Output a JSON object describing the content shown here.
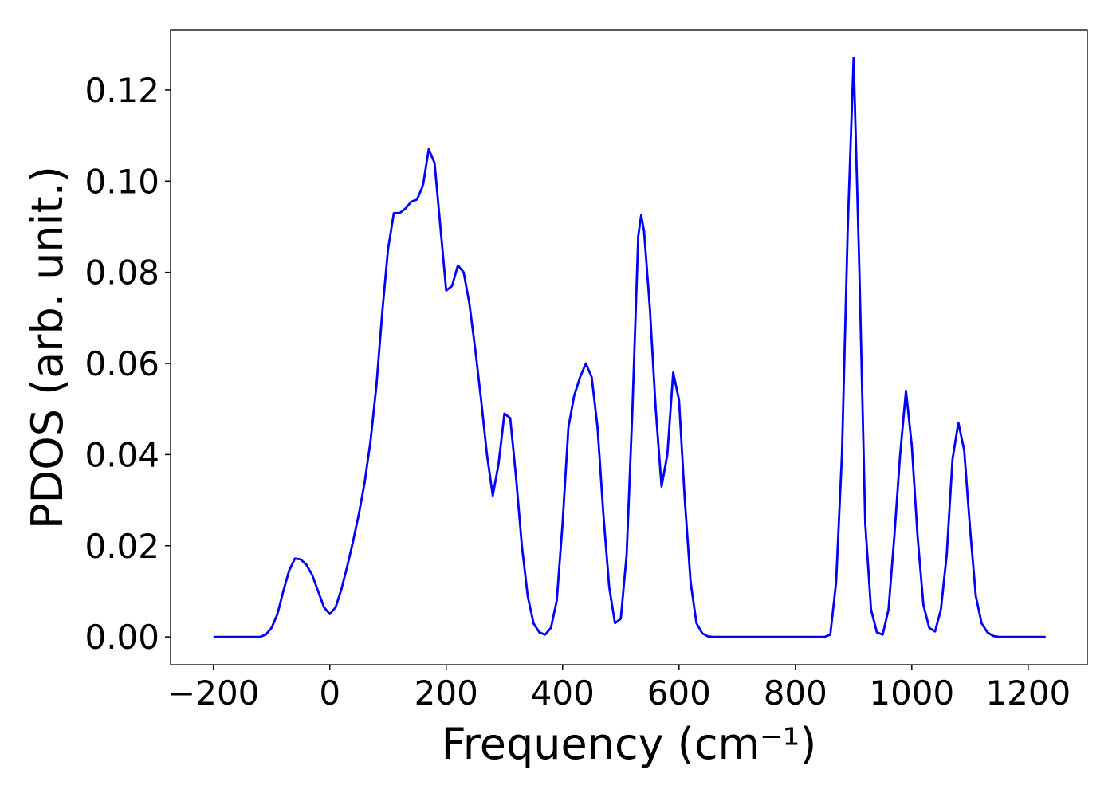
{
  "chart_data": {
    "type": "line",
    "x_label": "Frequency (cm⁻¹)",
    "y_label": "PDOS (arb. unit.)",
    "xlim": [
      -273.6,
      1301.6
    ],
    "ylim": [
      -0.0061,
      0.1331
    ],
    "xticks": [
      {
        "value": -200,
        "label": "−200"
      },
      0,
      200,
      400,
      600,
      800,
      1000,
      1200
    ],
    "yticks": [
      {
        "value": 0,
        "label": "0.00"
      },
      {
        "value": 0.02,
        "label": "0.02"
      },
      {
        "value": 0.04,
        "label": "0.04"
      },
      {
        "value": 0.06,
        "label": "0.06"
      },
      {
        "value": 0.08,
        "label": "0.08"
      },
      {
        "value": 0.1,
        "label": "0.10"
      },
      {
        "value": 0.12,
        "label": "0.12"
      }
    ],
    "grid": false,
    "x": [
      -200,
      -120,
      -110,
      -100,
      -90,
      -80,
      -70,
      -60,
      -50,
      -40,
      -30,
      -20,
      -10,
      0,
      10,
      20,
      30,
      40,
      50,
      60,
      70,
      80,
      90,
      100,
      110,
      120,
      130,
      140,
      150,
      160,
      170,
      180,
      190,
      200,
      210,
      220,
      230,
      240,
      250,
      260,
      270,
      280,
      290,
      300,
      310,
      320,
      330,
      340,
      350,
      360,
      370,
      380,
      390,
      400,
      410,
      420,
      430,
      440,
      450,
      460,
      470,
      480,
      490,
      500,
      510,
      520,
      530,
      535,
      540,
      550,
      560,
      570,
      580,
      590,
      600,
      610,
      620,
      630,
      640,
      650,
      660,
      850,
      860,
      870,
      880,
      890,
      900,
      910,
      920,
      930,
      940,
      950,
      960,
      970,
      980,
      990,
      1000,
      1010,
      1020,
      1030,
      1040,
      1050,
      1060,
      1070,
      1080,
      1090,
      1100,
      1110,
      1120,
      1130,
      1140,
      1150,
      1230
    ],
    "series": [
      {
        "name": "PDOS",
        "color": "#0000ff",
        "values": [
          0,
          0,
          0.0005,
          0.002,
          0.005,
          0.01,
          0.0145,
          0.0172,
          0.017,
          0.0158,
          0.0135,
          0.01,
          0.0065,
          0.005,
          0.0065,
          0.0105,
          0.0155,
          0.021,
          0.027,
          0.034,
          0.043,
          0.055,
          0.071,
          0.085,
          0.093,
          0.093,
          0.094,
          0.0955,
          0.096,
          0.099,
          0.107,
          0.104,
          0.09,
          0.076,
          0.077,
          0.0815,
          0.08,
          0.073,
          0.063,
          0.052,
          0.04,
          0.031,
          0.038,
          0.049,
          0.048,
          0.035,
          0.02,
          0.009,
          0.003,
          0.001,
          0.0005,
          0.002,
          0.008,
          0.025,
          0.046,
          0.053,
          0.057,
          0.06,
          0.057,
          0.046,
          0.027,
          0.011,
          0.003,
          0.004,
          0.018,
          0.05,
          0.088,
          0.0925,
          0.089,
          0.072,
          0.05,
          0.033,
          0.04,
          0.058,
          0.052,
          0.03,
          0.012,
          0.003,
          0.0008,
          0.0001,
          0,
          0,
          0.0005,
          0.012,
          0.04,
          0.09,
          0.127,
          0.08,
          0.025,
          0.006,
          0.001,
          0.0005,
          0.006,
          0.022,
          0.04,
          0.054,
          0.042,
          0.022,
          0.007,
          0.002,
          0.0012,
          0.006,
          0.018,
          0.039,
          0.047,
          0.041,
          0.024,
          0.009,
          0.003,
          0.001,
          0.0002,
          0,
          0
        ]
      }
    ]
  }
}
